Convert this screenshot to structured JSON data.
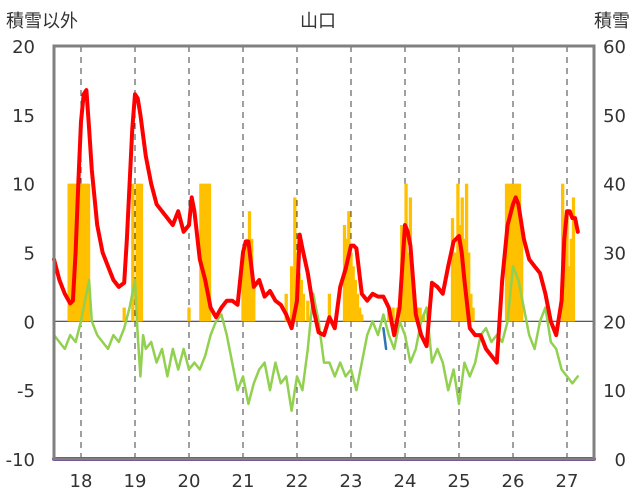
{
  "chart_data": {
    "type": "bar+line",
    "title": "山口",
    "left_axis_title": "積雪以外",
    "right_axis_title": "積雪",
    "left_ylim": [
      -10,
      20
    ],
    "left_yticks": [
      20,
      15,
      10,
      5,
      0,
      -5,
      -10
    ],
    "right_ylim": [
      0,
      60
    ],
    "right_yticks": [
      60,
      50,
      40,
      30,
      20,
      10,
      0
    ],
    "x_range": [
      17.5,
      27.5
    ],
    "x_ticks": [
      18,
      19,
      20,
      21,
      22,
      23,
      24,
      25,
      26,
      27
    ],
    "grid": "vertical dashed at ticks, horizontal zero line",
    "colors": {
      "snow_bars": "#FFC000",
      "red_line": "#FF0000",
      "green_line": "#92D050",
      "purple_base": "#7030A0",
      "frame": "#808080",
      "gridline": "#404040"
    },
    "bars": {
      "name": "積雪",
      "axis": "right",
      "x": [
        17.78,
        17.82,
        17.86,
        17.9,
        17.94,
        17.98,
        18.02,
        18.06,
        18.1,
        18.14,
        18.18,
        18.8,
        18.96,
        19.04,
        19.08,
        19.12,
        19.5,
        20.0,
        20.22,
        20.26,
        20.3,
        20.34,
        20.38,
        21.0,
        21.04,
        21.08,
        21.12,
        21.16,
        21.2,
        21.8,
        21.9,
        21.96,
        22.0,
        22.04,
        22.08,
        22.12,
        22.2,
        22.6,
        22.88,
        22.92,
        22.96,
        23.0,
        23.04,
        23.08,
        23.12,
        23.16,
        23.2,
        23.7,
        23.78,
        23.86,
        23.94,
        23.98,
        24.02,
        24.06,
        24.1,
        24.14,
        24.18,
        24.22,
        24.28,
        24.34,
        24.88,
        24.94,
        24.98,
        25.02,
        25.06,
        25.1,
        25.14,
        25.18,
        25.22,
        25.26,
        25.88,
        25.92,
        25.96,
        26.0,
        26.04,
        26.08,
        26.12,
        26.16,
        26.92,
        26.96,
        27.0,
        27.04,
        27.08,
        27.12
      ],
      "values": [
        40,
        40,
        40,
        40,
        40,
        40,
        40,
        40,
        40,
        40,
        20,
        22,
        40,
        40,
        40,
        40,
        20,
        22,
        40,
        40,
        40,
        40,
        40,
        28,
        30,
        32,
        36,
        32,
        25,
        24,
        28,
        38,
        30,
        27,
        26,
        24,
        23,
        24,
        34,
        32,
        36,
        30,
        28,
        26,
        24,
        22,
        21,
        22,
        22,
        22,
        34,
        32,
        40,
        30,
        38,
        26,
        24,
        22,
        22,
        21,
        35,
        30,
        40,
        34,
        38,
        32,
        40,
        30,
        24,
        22,
        40,
        40,
        40,
        40,
        40,
        40,
        40,
        34,
        40,
        30,
        36,
        28,
        32,
        38
      ]
    },
    "series": [
      {
        "name": "red",
        "axis": "left",
        "color": "#FF0000",
        "x": [
          17.5,
          17.6,
          17.7,
          17.8,
          17.85,
          17.9,
          17.95,
          18.0,
          18.05,
          18.1,
          18.15,
          18.2,
          18.3,
          18.4,
          18.5,
          18.6,
          18.7,
          18.8,
          18.85,
          18.9,
          18.95,
          19.0,
          19.05,
          19.1,
          19.2,
          19.3,
          19.4,
          19.5,
          19.6,
          19.7,
          19.8,
          19.9,
          20.0,
          20.05,
          20.1,
          20.2,
          20.3,
          20.4,
          20.5,
          20.6,
          20.7,
          20.8,
          20.9,
          21.0,
          21.05,
          21.1,
          21.2,
          21.3,
          21.4,
          21.5,
          21.6,
          21.7,
          21.8,
          21.9,
          22.0,
          22.05,
          22.1,
          22.2,
          22.3,
          22.4,
          22.5,
          22.6,
          22.7,
          22.8,
          22.9,
          23.0,
          23.05,
          23.1,
          23.2,
          23.3,
          23.4,
          23.5,
          23.6,
          23.7,
          23.8,
          23.9,
          24.0,
          24.05,
          24.1,
          24.2,
          24.3,
          24.4,
          24.5,
          24.6,
          24.7,
          24.8,
          24.9,
          25.0,
          25.05,
          25.1,
          25.2,
          25.3,
          25.4,
          25.5,
          25.6,
          25.7,
          25.8,
          25.9,
          26.0,
          26.05,
          26.1,
          26.2,
          26.3,
          26.4,
          26.5,
          26.6,
          26.7,
          26.8,
          26.9,
          26.95,
          27.0,
          27.05,
          27.1,
          27.15,
          27.2
        ],
        "values": [
          4.5,
          3,
          2,
          1.3,
          1.5,
          5,
          10,
          14.5,
          16.5,
          16.8,
          14,
          11,
          7,
          5,
          4,
          3,
          2.5,
          2.8,
          6,
          10,
          14,
          16.5,
          16.2,
          15,
          12,
          10,
          8.5,
          8,
          7.5,
          7,
          8,
          6.5,
          7,
          9,
          8,
          4.5,
          3,
          1,
          0.3,
          1,
          1.5,
          1.5,
          1.2,
          5,
          5.8,
          5.8,
          2.5,
          3,
          1.8,
          2.2,
          1.5,
          1.2,
          0.5,
          -0.5,
          1.5,
          6.3,
          5.3,
          3.5,
          1,
          -0.8,
          -1,
          0.3,
          -0.5,
          2.5,
          3.8,
          5.5,
          5.5,
          5.3,
          2,
          1.5,
          2,
          1.8,
          1.8,
          1,
          -1,
          1,
          7,
          6.5,
          5.5,
          0.5,
          -1,
          -1.8,
          2.8,
          2.5,
          2,
          4,
          5.8,
          6.2,
          5,
          3,
          -0.5,
          -1,
          -1,
          -2,
          -2.5,
          -3,
          3,
          7,
          8.5,
          9,
          8.5,
          6,
          4.5,
          4,
          3.5,
          2,
          0,
          -1,
          1.5,
          6,
          8,
          8,
          7.5,
          7.5,
          6.5
        ]
      },
      {
        "name": "green",
        "axis": "left",
        "color": "#92D050",
        "x": [
          17.5,
          17.6,
          17.7,
          17.8,
          17.9,
          18.0,
          18.1,
          18.15,
          18.2,
          18.3,
          18.4,
          18.5,
          18.6,
          18.7,
          18.8,
          18.9,
          19.0,
          19.05,
          19.1,
          19.15,
          19.2,
          19.3,
          19.4,
          19.5,
          19.6,
          19.7,
          19.8,
          19.9,
          20.0,
          20.1,
          20.2,
          20.3,
          20.4,
          20.5,
          20.6,
          20.7,
          20.8,
          20.9,
          21.0,
          21.1,
          21.2,
          21.3,
          21.4,
          21.5,
          21.6,
          21.7,
          21.8,
          21.9,
          22.0,
          22.1,
          22.2,
          22.3,
          22.4,
          22.5,
          22.6,
          22.7,
          22.8,
          22.9,
          23.0,
          23.1,
          23.2,
          23.3,
          23.4,
          23.5,
          23.6,
          23.7,
          23.8,
          23.9,
          24.0,
          24.1,
          24.2,
          24.3,
          24.4,
          24.5,
          24.6,
          24.7,
          24.8,
          24.9,
          25.0,
          25.1,
          25.2,
          25.3,
          25.4,
          25.5,
          25.6,
          25.7,
          25.8,
          25.9,
          26.0,
          26.1,
          26.2,
          26.3,
          26.4,
          26.5,
          26.6,
          26.7,
          26.8,
          26.9,
          27.0,
          27.1,
          27.2
        ],
        "values": [
          -1,
          -1.5,
          -2,
          -1,
          -1.5,
          0,
          2,
          3,
          0,
          -1,
          -1.5,
          -2,
          -1,
          -1.5,
          -0.5,
          1,
          3,
          -1,
          -4,
          -1,
          -2,
          -1.5,
          -3,
          -2,
          -4,
          -2,
          -3.5,
          -2,
          -3.5,
          -3,
          -3.5,
          -2.5,
          -1,
          0,
          0.5,
          -1,
          -3,
          -5,
          -4,
          -6,
          -4.5,
          -3.5,
          -3,
          -5,
          -3,
          -4.5,
          -4,
          -6.5,
          -4,
          -5,
          -2,
          2,
          0,
          -3,
          -3,
          -4,
          -3,
          -4,
          -3.5,
          -5,
          -3,
          -1,
          0,
          -1,
          0.5,
          -1,
          -2,
          0,
          -1,
          -3,
          -2,
          0,
          1,
          -3,
          -2,
          -3,
          -5,
          -3.5,
          -6,
          -3,
          -4,
          -3,
          -1,
          -0.5,
          -1.5,
          -1,
          -1.5,
          0,
          4,
          3,
          1,
          -1,
          -2,
          0,
          1,
          -1.5,
          -2,
          -3.5,
          -4,
          -4.5,
          -4
        ]
      }
    ],
    "extras": [
      {
        "name": "blue",
        "axis": "left",
        "color": "#2E75B6",
        "x": [
          23.6,
          23.65
        ],
        "values": [
          -0.5,
          -2
        ]
      },
      {
        "name": "purple",
        "axis": "left",
        "color": "#7030A0",
        "x": [
          17.5,
          27.5
        ],
        "values": [
          -10,
          -10
        ]
      }
    ]
  }
}
